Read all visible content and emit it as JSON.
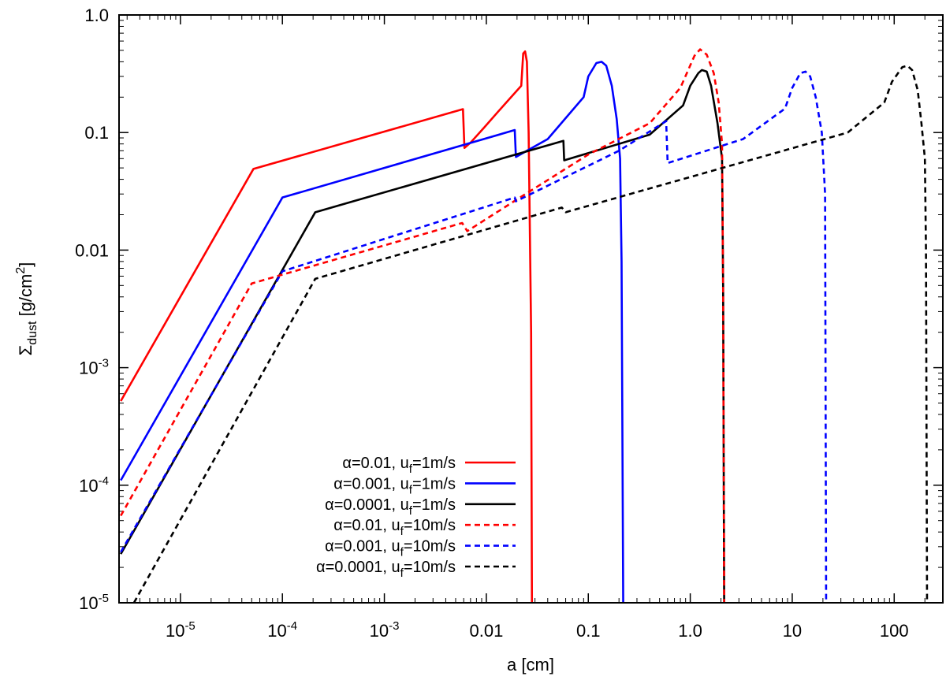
{
  "chart_data": {
    "type": "line",
    "xscale": "log",
    "yscale": "log",
    "xlim": [
      2.5e-06,
      300
    ],
    "ylim": [
      1e-05,
      1.0
    ],
    "xlabel": "a [cm]",
    "ylabel": {
      "base": "Σ",
      "sub": "dust",
      "mid": " [g/cm",
      "sup": "2",
      "end": "]"
    },
    "xticks": [
      {
        "value": 1e-05,
        "base": "10",
        "exp": "-5"
      },
      {
        "value": 0.0001,
        "base": "10",
        "exp": "-4"
      },
      {
        "value": 0.001,
        "base": "10",
        "exp": "-3"
      },
      {
        "value": 0.01,
        "base": "0.01",
        "exp": ""
      },
      {
        "value": 0.1,
        "base": "0.1",
        "exp": ""
      },
      {
        "value": 1,
        "base": "1.0",
        "exp": ""
      },
      {
        "value": 10,
        "base": "10",
        "exp": ""
      },
      {
        "value": 100,
        "base": "100",
        "exp": ""
      }
    ],
    "yticks": [
      {
        "value": 1.0,
        "base": "1.0",
        "exp": ""
      },
      {
        "value": 0.1,
        "base": "0.1",
        "exp": ""
      },
      {
        "value": 0.01,
        "base": "0.01",
        "exp": ""
      },
      {
        "value": 0.001,
        "base": "10",
        "exp": "-3"
      },
      {
        "value": 0.0001,
        "base": "10",
        "exp": "-4"
      },
      {
        "value": 1e-05,
        "base": "10",
        "exp": "-5"
      }
    ],
    "legend_position": "bottom-right",
    "series": [
      {
        "name": "α=0.01, u_f=1m/s",
        "label": {
          "pre": "α=0.01, u",
          "sub": "f",
          "post": "=1m/s"
        },
        "color": "#ff0000",
        "dash": "solid",
        "points": [
          [
            2.6e-06,
            0.00052
          ],
          [
            5.2e-05,
            0.049
          ],
          [
            0.0059,
            0.158
          ],
          [
            0.0061,
            0.074
          ],
          [
            0.007,
            0.082
          ],
          [
            0.0095,
            0.11
          ],
          [
            0.013,
            0.15
          ],
          [
            0.022,
            0.25
          ],
          [
            0.023,
            0.47
          ],
          [
            0.024,
            0.49
          ],
          [
            0.025,
            0.4
          ],
          [
            0.026,
            0.1
          ],
          [
            0.0275,
            0.002
          ],
          [
            0.028,
            1e-05
          ]
        ]
      },
      {
        "name": "α=0.001, u_f=1m/s",
        "label": {
          "pre": "α=0.001, u",
          "sub": "f",
          "post": "=1m/s"
        },
        "color": "#0000ff",
        "dash": "solid",
        "points": [
          [
            2.6e-06,
            0.00011
          ],
          [
            0.0001,
            0.028
          ],
          [
            0.019,
            0.105
          ],
          [
            0.0195,
            0.062
          ],
          [
            0.04,
            0.088
          ],
          [
            0.09,
            0.2
          ],
          [
            0.1,
            0.3
          ],
          [
            0.12,
            0.39
          ],
          [
            0.135,
            0.4
          ],
          [
            0.15,
            0.37
          ],
          [
            0.17,
            0.25
          ],
          [
            0.19,
            0.13
          ],
          [
            0.205,
            0.06
          ],
          [
            0.212,
            0.008
          ],
          [
            0.22,
            1e-05
          ]
        ]
      },
      {
        "name": "α=0.0001, u_f=1m/s",
        "label": {
          "pre": "α=0.0001, u",
          "sub": "f",
          "post": "=1m/s"
        },
        "color": "#000000",
        "dash": "solid",
        "points": [
          [
            2.6e-06,
            2.6e-05
          ],
          [
            0.00021,
            0.021
          ],
          [
            0.057,
            0.085
          ],
          [
            0.058,
            0.058
          ],
          [
            0.4,
            0.096
          ],
          [
            0.85,
            0.17
          ],
          [
            1.0,
            0.25
          ],
          [
            1.2,
            0.32
          ],
          [
            1.3,
            0.34
          ],
          [
            1.45,
            0.33
          ],
          [
            1.6,
            0.25
          ],
          [
            1.85,
            0.12
          ],
          [
            2.05,
            0.06
          ],
          [
            2.1,
            0.005
          ],
          [
            2.15,
            1e-05
          ]
        ]
      },
      {
        "name": "α=0.01, u_f=10m/s",
        "label": {
          "pre": "α=0.01, u",
          "sub": "f",
          "post": "=10m/s"
        },
        "color": "#ff0000",
        "dash": "dashed",
        "points": [
          [
            2.6e-06,
            5.5e-05
          ],
          [
            5e-05,
            0.0052
          ],
          [
            0.0058,
            0.017
          ],
          [
            0.0065,
            0.0145
          ],
          [
            0.02,
            0.027
          ],
          [
            0.1,
            0.065
          ],
          [
            0.4,
            0.12
          ],
          [
            0.8,
            0.24
          ],
          [
            1.1,
            0.45
          ],
          [
            1.25,
            0.51
          ],
          [
            1.45,
            0.46
          ],
          [
            1.7,
            0.32
          ],
          [
            1.9,
            0.18
          ],
          [
            2.05,
            0.08
          ],
          [
            2.1,
            0.005
          ],
          [
            2.15,
            1e-05
          ]
        ]
      },
      {
        "name": "α=0.001, u_f=10m/s",
        "label": {
          "pre": "α=0.001, u",
          "sub": "f",
          "post": "=10m/s"
        },
        "color": "#0000ff",
        "dash": "dashed",
        "points": [
          [
            2.6e-06,
            2.7e-05
          ],
          [
            0.0001,
            0.0066
          ],
          [
            0.019,
            0.028
          ],
          [
            0.0195,
            0.026
          ],
          [
            0.2,
            0.07
          ],
          [
            0.58,
            0.125
          ],
          [
            0.6,
            0.055
          ],
          [
            3.3,
            0.088
          ],
          [
            8.5,
            0.16
          ],
          [
            10,
            0.24
          ],
          [
            12,
            0.32
          ],
          [
            13.5,
            0.33
          ],
          [
            15,
            0.3
          ],
          [
            17,
            0.2
          ],
          [
            19.5,
            0.1
          ],
          [
            21,
            0.03
          ],
          [
            21.5,
            1e-05
          ]
        ]
      },
      {
        "name": "α=0.0001, u_f=10m/s",
        "label": {
          "pre": "α=0.0001, u",
          "sub": "f",
          "post": "=10m/s"
        },
        "color": "#000000",
        "dash": "dashed",
        "points": [
          [
            3.5e-06,
            1e-05
          ],
          [
            0.00021,
            0.0057
          ],
          [
            0.055,
            0.023
          ],
          [
            0.06,
            0.021
          ],
          [
            35,
            0.1
          ],
          [
            80,
            0.18
          ],
          [
            95,
            0.27
          ],
          [
            120,
            0.36
          ],
          [
            135,
            0.37
          ],
          [
            150,
            0.34
          ],
          [
            170,
            0.23
          ],
          [
            185,
            0.12
          ],
          [
            200,
            0.06
          ],
          [
            205,
            0.01
          ],
          [
            210,
            1e-05
          ]
        ]
      }
    ]
  }
}
